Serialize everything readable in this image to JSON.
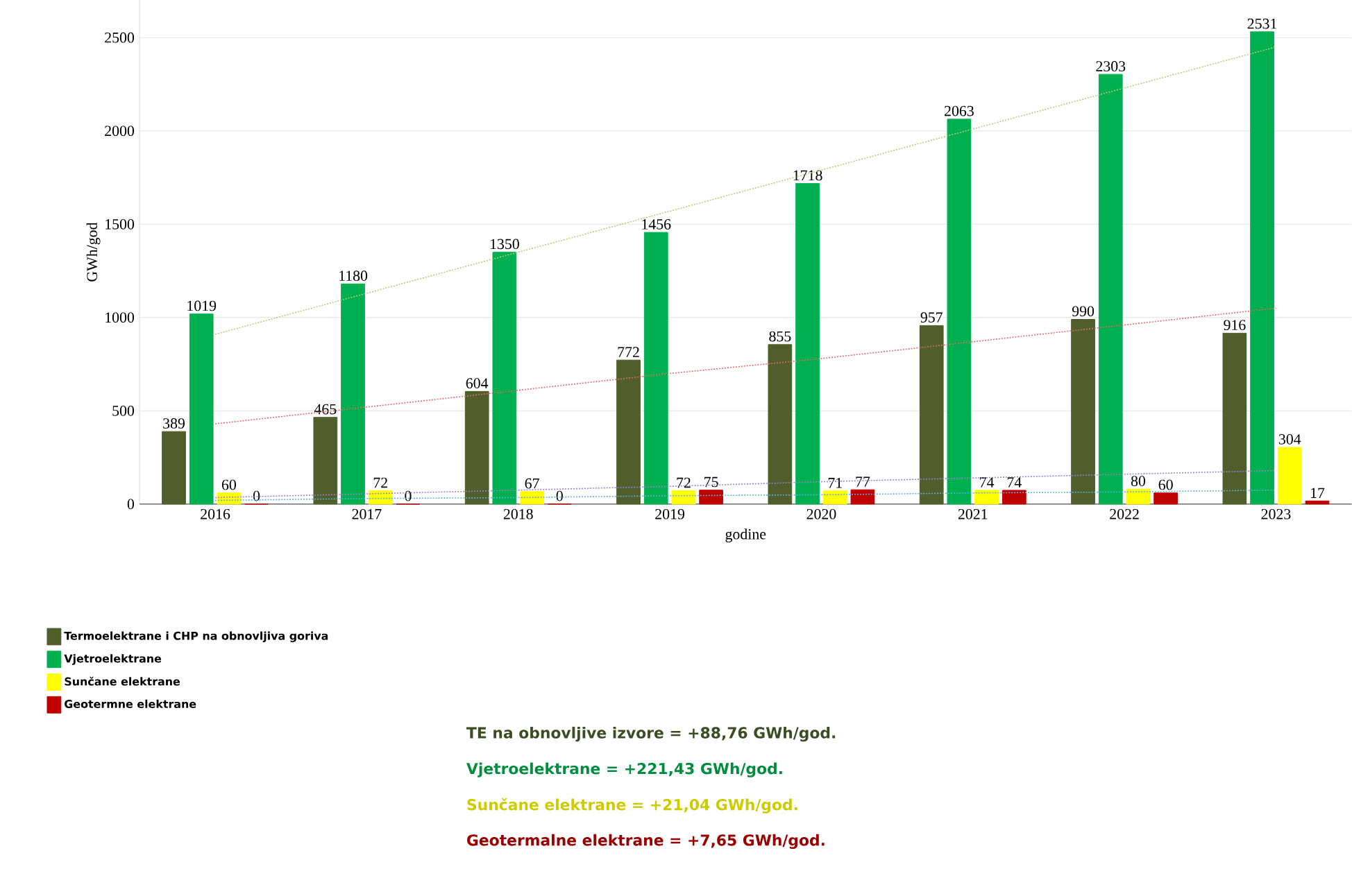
{
  "chart_data": {
    "type": "bar",
    "xlabel": "godine",
    "ylabel": "GWh/god",
    "categories": [
      "2016",
      "2017",
      "2018",
      "2019",
      "2020",
      "2021",
      "2022",
      "2023"
    ],
    "series": [
      {
        "name": "Termoelektrane i CHP na obnovljiva goriva",
        "color": "#4f5e2a",
        "values": [
          389,
          465,
          604,
          772,
          855,
          957,
          990,
          916
        ],
        "value_labels": [
          "389",
          "465",
          "604",
          "772",
          "855",
          "957",
          "990",
          "916"
        ]
      },
      {
        "name": "Vjetroelektrane",
        "color": "#00b050",
        "values": [
          1019,
          1180,
          1350,
          1456,
          1718,
          2063,
          2303,
          2531
        ],
        "value_labels": [
          "1019",
          "1180",
          "1350",
          "1456",
          "1718",
          "2063",
          "2303",
          "2531"
        ]
      },
      {
        "name": "Sunčane elektrane",
        "color": "#ffff00",
        "values": [
          60,
          72,
          67,
          72,
          71,
          74,
          80,
          304
        ],
        "value_labels": [
          "60",
          "72",
          "67",
          "72",
          "71",
          "74",
          "80",
          "304"
        ]
      },
      {
        "name": "Geotermne elektrane",
        "color": "#c00000",
        "values": [
          0,
          0,
          0,
          75,
          77,
          74,
          60,
          17
        ],
        "value_labels": [
          "0",
          "0",
          "0",
          "75",
          "77",
          "74",
          "60",
          "17"
        ]
      },
      {
        "type": "line",
        "values": [
          430,
          520,
          610,
          700,
          780,
          870,
          960,
          1050
        ],
        "color": "#e06a6a",
        "line_style": "dotted"
      },
      {
        "type": "line",
        "values": [
          910,
          1130,
          1350,
          1570,
          1790,
          2010,
          2230,
          2450
        ],
        "color": "#b8cc70",
        "line_style": "dotted"
      },
      {
        "type": "line",
        "values": [
          35,
          55,
          75,
          95,
          120,
          140,
          160,
          180
        ],
        "color": "#9a80d0",
        "line_style": "dotted"
      },
      {
        "type": "line",
        "values": [
          20,
          30,
          35,
          45,
          50,
          60,
          65,
          75
        ],
        "color": "#5ab4d6",
        "line_style": "dotted"
      }
    ],
    "ylim": [
      0,
      2700
    ],
    "yticks": [
      0,
      500,
      1000,
      1500,
      2000,
      2500
    ],
    "grid": "y",
    "legend": "bottom left",
    "annotations": [
      "TE na obnovljive izvore = +88,76 GWh/god.",
      "Vjetroelektrane = +221,43 GWh/god.",
      "Sunčane elektrane = +21,04 GWh/god.",
      "Geotermalne elektrane = +7,65 GWh/god."
    ]
  }
}
